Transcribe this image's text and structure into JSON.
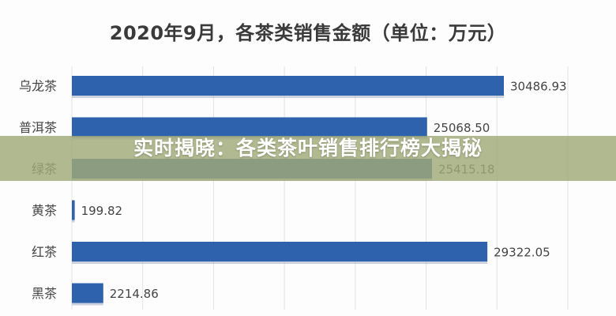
{
  "chart_data": {
    "type": "bar",
    "orientation": "horizontal",
    "title": "2020年9月，各茶类销售金额（单位：万元）",
    "categories": [
      "乌龙茶",
      "普洱茶",
      "绿茶",
      "黄茶",
      "红茶",
      "黑茶"
    ],
    "values": [
      30486.93,
      25068.5,
      25415.18,
      199.82,
      29322.05,
      2214.86
    ],
    "data_labels": [
      "30486.93",
      "25068.50",
      "25415.18",
      "199.82",
      "29322.05",
      "2214.86"
    ],
    "xlim": [
      0,
      35000
    ],
    "grid": true,
    "bar_color": "#2f62ad"
  },
  "overlay": {
    "banner_text": "实时揭晓：各类茶叶销售排行榜大揭秘"
  }
}
